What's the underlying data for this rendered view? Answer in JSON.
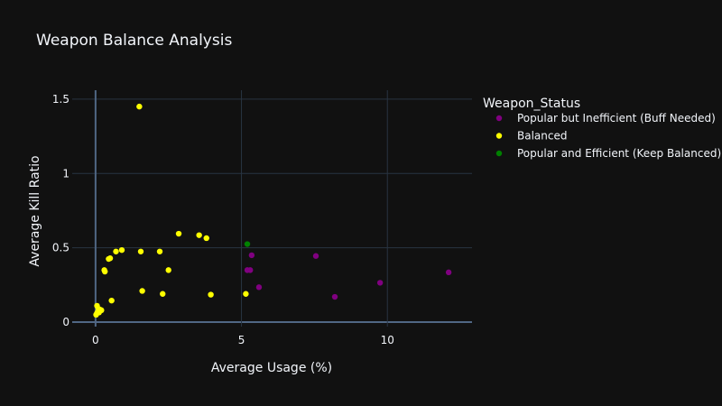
{
  "chart_data": {
    "type": "scatter",
    "title": "Weapon Balance Analysis",
    "xlabel": "Average Usage (%)",
    "ylabel": "Average Kill Ratio",
    "xlim": [
      -0.8,
      12.9
    ],
    "ylim": [
      -0.03,
      1.56
    ],
    "x_ticks": [
      0,
      5,
      10
    ],
    "y_ticks": [
      0,
      0.5,
      1,
      1.5
    ],
    "x_tick_labels": [
      "0",
      "5",
      "10"
    ],
    "y_tick_labels": [
      "0",
      "0.5",
      "1",
      "1.5"
    ],
    "grid": true,
    "legend": {
      "title": "Weapon_Status",
      "placement": "right"
    },
    "series": [
      {
        "name": "Popular but Inefficient (Buff Needed)",
        "color": "#800080",
        "points": [
          {
            "x": 5.2,
            "y": 0.35
          },
          {
            "x": 5.3,
            "y": 0.35
          },
          {
            "x": 5.35,
            "y": 0.45
          },
          {
            "x": 5.6,
            "y": 0.235
          },
          {
            "x": 7.55,
            "y": 0.445
          },
          {
            "x": 8.2,
            "y": 0.17
          },
          {
            "x": 9.75,
            "y": 0.265
          },
          {
            "x": 12.1,
            "y": 0.335
          }
        ]
      },
      {
        "name": "Balanced",
        "color": "#ffff00",
        "points": [
          {
            "x": 1.5,
            "y": 1.45
          },
          {
            "x": 2.85,
            "y": 0.595
          },
          {
            "x": 3.55,
            "y": 0.585
          },
          {
            "x": 3.8,
            "y": 0.565
          },
          {
            "x": 0.9,
            "y": 0.485
          },
          {
            "x": 0.7,
            "y": 0.475
          },
          {
            "x": 1.55,
            "y": 0.475
          },
          {
            "x": 2.2,
            "y": 0.475
          },
          {
            "x": 0.45,
            "y": 0.425
          },
          {
            "x": 0.5,
            "y": 0.43
          },
          {
            "x": 0.3,
            "y": 0.35
          },
          {
            "x": 0.32,
            "y": 0.34
          },
          {
            "x": 2.5,
            "y": 0.35
          },
          {
            "x": 1.6,
            "y": 0.21
          },
          {
            "x": 2.3,
            "y": 0.19
          },
          {
            "x": 3.95,
            "y": 0.185
          },
          {
            "x": 5.15,
            "y": 0.19
          },
          {
            "x": 0.55,
            "y": 0.145
          },
          {
            "x": 0.05,
            "y": 0.11
          },
          {
            "x": 0.1,
            "y": 0.09
          },
          {
            "x": 0.15,
            "y": 0.085
          },
          {
            "x": 0.2,
            "y": 0.08
          },
          {
            "x": 0.08,
            "y": 0.07
          },
          {
            "x": 0.12,
            "y": 0.065
          },
          {
            "x": 0.02,
            "y": 0.05
          },
          {
            "x": 0.05,
            "y": 0.06
          }
        ]
      },
      {
        "name": "Popular and Efficient (Keep Balanced)",
        "color": "#008000",
        "points": [
          {
            "x": 5.2,
            "y": 0.525
          }
        ]
      }
    ]
  }
}
